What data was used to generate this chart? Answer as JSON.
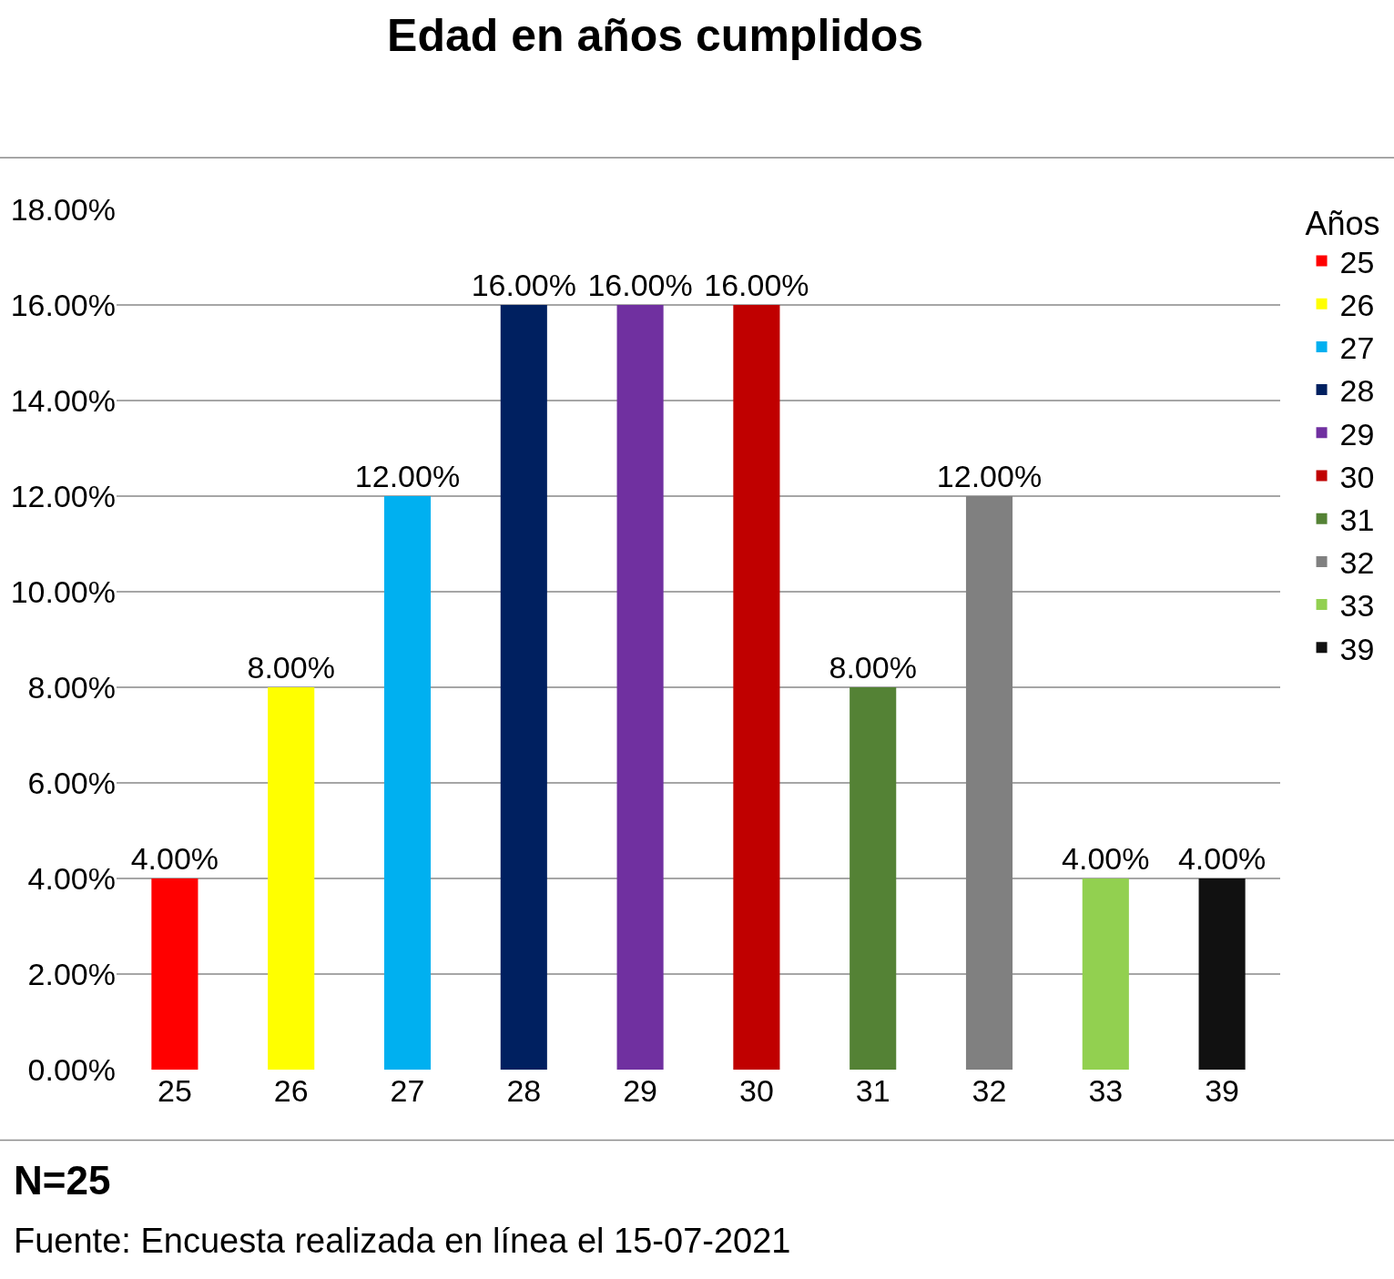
{
  "chart_data": {
    "type": "bar",
    "title": "Edad en años cumplidos",
    "legend_title": "Años",
    "categories": [
      "25",
      "26",
      "27",
      "28",
      "29",
      "30",
      "31",
      "32",
      "33",
      "39"
    ],
    "series": [
      {
        "name": "25",
        "color": "#ff0000",
        "values": [
          4,
          null,
          null,
          null,
          null,
          null,
          null,
          null,
          null,
          null
        ],
        "value_labels": [
          "4.00%",
          null,
          null,
          null,
          null,
          null,
          null,
          null,
          null,
          null
        ]
      },
      {
        "name": "26",
        "color": "#ffff00",
        "values": [
          null,
          8,
          null,
          null,
          null,
          null,
          null,
          null,
          null,
          null
        ],
        "value_labels": [
          null,
          "8.00%",
          null,
          null,
          null,
          null,
          null,
          null,
          null,
          null
        ]
      },
      {
        "name": "27",
        "color": "#00b0f0",
        "values": [
          null,
          null,
          12,
          null,
          null,
          null,
          null,
          null,
          null,
          null
        ],
        "value_labels": [
          null,
          null,
          "12.00%",
          null,
          null,
          null,
          null,
          null,
          null,
          null
        ]
      },
      {
        "name": "28",
        "color": "#002060",
        "values": [
          null,
          null,
          null,
          16,
          null,
          null,
          null,
          null,
          null,
          null
        ],
        "value_labels": [
          null,
          null,
          null,
          "16.00%",
          null,
          null,
          null,
          null,
          null,
          null
        ]
      },
      {
        "name": "29",
        "color": "#7030a0",
        "values": [
          null,
          null,
          null,
          null,
          16,
          null,
          null,
          null,
          null,
          null
        ],
        "value_labels": [
          null,
          null,
          null,
          null,
          "16.00%",
          null,
          null,
          null,
          null,
          null
        ]
      },
      {
        "name": "30",
        "color": "#c00000",
        "values": [
          null,
          null,
          null,
          null,
          null,
          16,
          null,
          null,
          null,
          null
        ],
        "value_labels": [
          null,
          null,
          null,
          null,
          null,
          "16.00%",
          null,
          null,
          null,
          null
        ]
      },
      {
        "name": "31",
        "color": "#548235",
        "values": [
          null,
          null,
          null,
          null,
          null,
          null,
          8,
          null,
          null,
          null
        ],
        "value_labels": [
          null,
          null,
          null,
          null,
          null,
          null,
          "8.00%",
          null,
          null,
          null
        ]
      },
      {
        "name": "32",
        "color": "#808080",
        "values": [
          null,
          null,
          null,
          null,
          null,
          null,
          null,
          12,
          null,
          null
        ],
        "value_labels": [
          null,
          null,
          null,
          null,
          null,
          null,
          null,
          "12.00%",
          null,
          null
        ]
      },
      {
        "name": "33",
        "color": "#92d050",
        "values": [
          null,
          null,
          null,
          null,
          null,
          null,
          null,
          null,
          4,
          null
        ],
        "value_labels": [
          null,
          null,
          null,
          null,
          null,
          null,
          null,
          null,
          "4.00%",
          null
        ]
      },
      {
        "name": "39",
        "color": "#111111",
        "values": [
          null,
          null,
          null,
          null,
          null,
          null,
          null,
          null,
          null,
          4
        ],
        "value_labels": [
          null,
          null,
          null,
          null,
          null,
          null,
          null,
          null,
          null,
          "4.00%"
        ]
      }
    ],
    "ylim": [
      0,
      18
    ],
    "yticks": [
      {
        "value": 0,
        "label": "0.00%"
      },
      {
        "value": 2,
        "label": "2.00%"
      },
      {
        "value": 4,
        "label": "4.00%"
      },
      {
        "value": 6,
        "label": "6.00%"
      },
      {
        "value": 8,
        "label": "8.00%"
      },
      {
        "value": 10,
        "label": "10.00%"
      },
      {
        "value": 12,
        "label": "12.00%"
      },
      {
        "value": 14,
        "label": "14.00%"
      },
      {
        "value": 16,
        "label": "16.00%"
      },
      {
        "value": 18,
        "label": "18.00%"
      }
    ],
    "grid": "y",
    "legend": "right",
    "annotations": [
      "N=25",
      "Fuente: Encuesta realizada en línea el 15-07-2021"
    ]
  }
}
